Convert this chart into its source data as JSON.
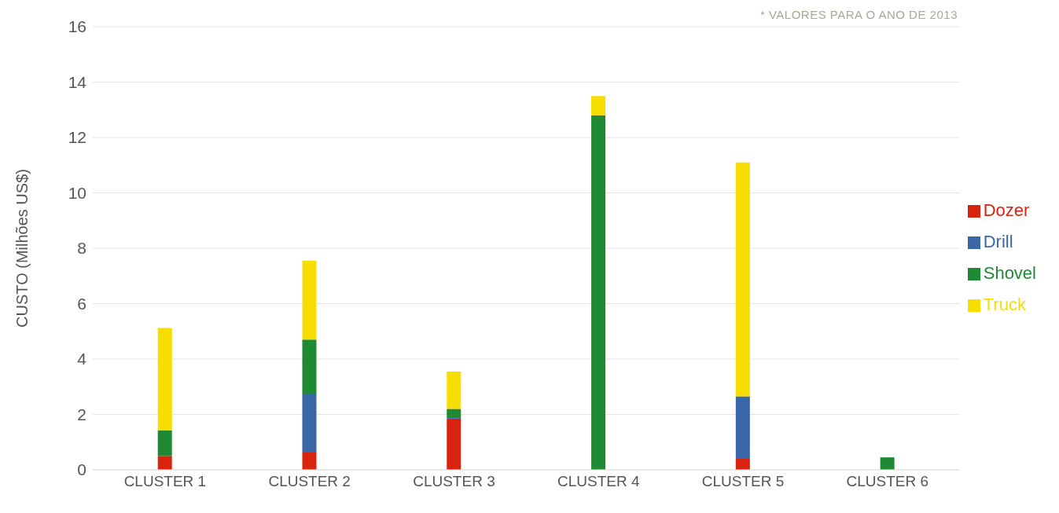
{
  "chart_data": {
    "type": "bar",
    "stacked": true,
    "ylabel": "CUSTO (Milhões US$)",
    "annotations": [
      "* VALORES PARA O ANO DE 2013"
    ],
    "categories": [
      "CLUSTER 1",
      "CLUSTER 2",
      "CLUSTER 3",
      "CLUSTER 4",
      "CLUSTER 5",
      "CLUSTER 6"
    ],
    "series": [
      {
        "name": "Dozer",
        "color": "#d9230f",
        "values": [
          0.5,
          0.65,
          1.85,
          0,
          0.4,
          0
        ]
      },
      {
        "name": "Drill",
        "color": "#3a67a8",
        "values": [
          0,
          2.1,
          0.05,
          0,
          2.25,
          0
        ]
      },
      {
        "name": "Shovel",
        "color": "#1f8a34",
        "values": [
          0.92,
          1.95,
          0.3,
          12.8,
          0,
          0.45
        ]
      },
      {
        "name": "Truck",
        "color": "#f5de00",
        "values": [
          3.7,
          2.85,
          1.35,
          0.7,
          8.45,
          0
        ]
      }
    ],
    "ylim": [
      0,
      16
    ],
    "yticks": [
      0,
      2,
      4,
      6,
      8,
      10,
      12,
      14,
      16
    ],
    "grid": "y",
    "legend": "right"
  }
}
